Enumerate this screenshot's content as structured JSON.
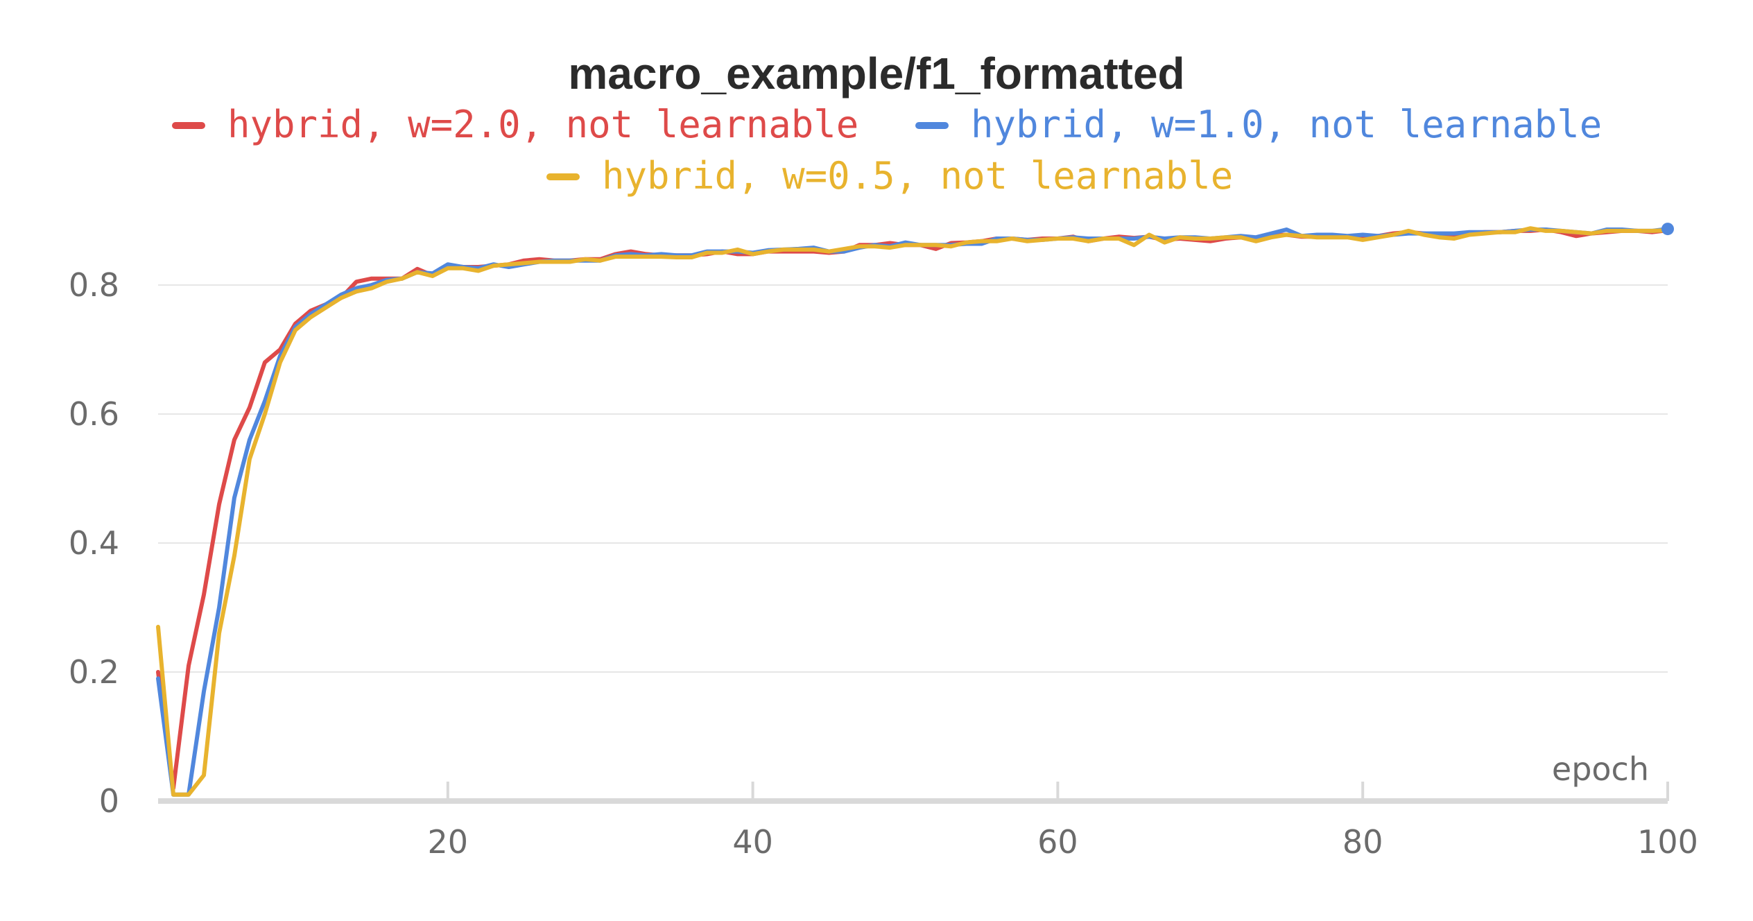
{
  "chart_data": {
    "type": "line",
    "title": "macro_example/f1_formatted",
    "xlabel": "epoch",
    "ylabel": "",
    "xlim": [
      1,
      100
    ],
    "ylim": [
      0,
      0.9
    ],
    "xticks": [
      "20",
      "40",
      "60",
      "80",
      "100"
    ],
    "yticks": [
      "0",
      "0.2",
      "0.4",
      "0.6",
      "0.8"
    ],
    "grid": true,
    "legend_placement": "top",
    "series": [
      {
        "name": "hybrid, w=2.0, not learnable",
        "color": "#de4a49",
        "x": [
          1,
          2,
          3,
          4,
          5,
          6,
          7,
          8,
          9,
          10,
          11,
          12,
          13,
          14,
          15,
          16,
          17,
          18,
          19,
          20,
          21,
          22,
          23,
          24,
          25,
          26,
          27,
          28,
          29,
          30,
          31,
          32,
          33,
          34,
          35,
          36,
          37,
          38,
          39,
          40,
          41,
          42,
          43,
          44,
          45,
          46,
          47,
          48,
          49,
          50,
          51,
          52,
          53,
          54,
          55,
          56,
          57,
          58,
          59,
          60,
          61,
          62,
          63,
          64,
          65,
          66,
          67,
          68,
          69,
          70,
          71,
          72,
          73,
          74,
          75,
          76,
          77,
          78,
          79,
          80,
          81,
          82,
          83,
          84,
          85,
          86,
          87,
          88,
          89,
          90,
          91,
          92,
          93,
          94,
          95,
          96,
          97,
          98,
          99,
          100
        ],
        "values": [
          0.2,
          0.02,
          0.21,
          0.32,
          0.46,
          0.56,
          0.61,
          0.68,
          0.7,
          0.74,
          0.76,
          0.77,
          0.78,
          0.805,
          0.81,
          0.81,
          0.81,
          0.825,
          0.815,
          0.83,
          0.828,
          0.828,
          0.83,
          0.832,
          0.838,
          0.84,
          0.838,
          0.838,
          0.84,
          0.84,
          0.848,
          0.852,
          0.848,
          0.846,
          0.846,
          0.846,
          0.848,
          0.852,
          0.848,
          0.848,
          0.852,
          0.852,
          0.852,
          0.852,
          0.85,
          0.852,
          0.862,
          0.862,
          0.865,
          0.862,
          0.862,
          0.856,
          0.865,
          0.866,
          0.868,
          0.872,
          0.872,
          0.87,
          0.872,
          0.872,
          0.875,
          0.868,
          0.872,
          0.875,
          0.873,
          0.875,
          0.87,
          0.872,
          0.87,
          0.868,
          0.872,
          0.874,
          0.872,
          0.877,
          0.878,
          0.875,
          0.875,
          0.876,
          0.875,
          0.875,
          0.876,
          0.88,
          0.882,
          0.88,
          0.878,
          0.876,
          0.88,
          0.882,
          0.882,
          0.884,
          0.884,
          0.886,
          0.882,
          0.876,
          0.88,
          0.882,
          0.884,
          0.884,
          0.882,
          0.885
        ]
      },
      {
        "name": "hybrid, w=1.0, not learnable",
        "color": "#5087dd",
        "x": [
          1,
          2,
          3,
          4,
          5,
          6,
          7,
          8,
          9,
          10,
          11,
          12,
          13,
          14,
          15,
          16,
          17,
          18,
          19,
          20,
          21,
          22,
          23,
          24,
          25,
          26,
          27,
          28,
          29,
          30,
          31,
          32,
          33,
          34,
          35,
          36,
          37,
          38,
          39,
          40,
          41,
          42,
          43,
          44,
          45,
          46,
          47,
          48,
          49,
          50,
          51,
          52,
          53,
          54,
          55,
          56,
          57,
          58,
          59,
          60,
          61,
          62,
          63,
          64,
          65,
          66,
          67,
          68,
          69,
          70,
          71,
          72,
          73,
          74,
          75,
          76,
          77,
          78,
          79,
          80,
          81,
          82,
          83,
          84,
          85,
          86,
          87,
          88,
          89,
          90,
          91,
          92,
          93,
          94,
          95,
          96,
          97,
          98,
          99,
          100
        ],
        "values": [
          0.19,
          0.01,
          0.01,
          0.17,
          0.3,
          0.47,
          0.56,
          0.62,
          0.69,
          0.735,
          0.755,
          0.77,
          0.785,
          0.795,
          0.8,
          0.808,
          0.81,
          0.82,
          0.818,
          0.832,
          0.828,
          0.826,
          0.832,
          0.828,
          0.832,
          0.836,
          0.838,
          0.838,
          0.838,
          0.838,
          0.846,
          0.848,
          0.846,
          0.848,
          0.846,
          0.846,
          0.852,
          0.852,
          0.852,
          0.85,
          0.854,
          0.855,
          0.856,
          0.858,
          0.852,
          0.852,
          0.858,
          0.862,
          0.86,
          0.866,
          0.862,
          0.862,
          0.862,
          0.864,
          0.864,
          0.872,
          0.872,
          0.87,
          0.87,
          0.872,
          0.874,
          0.872,
          0.872,
          0.872,
          0.872,
          0.875,
          0.872,
          0.874,
          0.874,
          0.872,
          0.874,
          0.876,
          0.874,
          0.88,
          0.886,
          0.876,
          0.878,
          0.878,
          0.876,
          0.878,
          0.876,
          0.878,
          0.88,
          0.88,
          0.88,
          0.88,
          0.882,
          0.882,
          0.882,
          0.884,
          0.886,
          0.886,
          0.884,
          0.882,
          0.88,
          0.886,
          0.886,
          0.884,
          0.884,
          0.887
        ]
      },
      {
        "name": "hybrid, w=0.5, not learnable",
        "color": "#e8b32e",
        "x": [
          1,
          2,
          3,
          4,
          5,
          6,
          7,
          8,
          9,
          10,
          11,
          12,
          13,
          14,
          15,
          16,
          17,
          18,
          19,
          20,
          21,
          22,
          23,
          24,
          25,
          26,
          27,
          28,
          29,
          30,
          31,
          32,
          33,
          34,
          35,
          36,
          37,
          38,
          39,
          40,
          41,
          42,
          43,
          44,
          45,
          46,
          47,
          48,
          49,
          50,
          51,
          52,
          53,
          54,
          55,
          56,
          57,
          58,
          59,
          60,
          61,
          62,
          63,
          64,
          65,
          66,
          67,
          68,
          69,
          70,
          71,
          72,
          73,
          74,
          75,
          76,
          77,
          78,
          79,
          80,
          81,
          82,
          83,
          84,
          85,
          86,
          87,
          88,
          89,
          90,
          91,
          92,
          93,
          94,
          95,
          96,
          97,
          98,
          99,
          100
        ],
        "values": [
          0.27,
          0.01,
          0.01,
          0.04,
          0.26,
          0.38,
          0.53,
          0.6,
          0.68,
          0.73,
          0.75,
          0.765,
          0.78,
          0.79,
          0.795,
          0.805,
          0.81,
          0.82,
          0.814,
          0.826,
          0.826,
          0.822,
          0.83,
          0.832,
          0.834,
          0.836,
          0.836,
          0.836,
          0.84,
          0.838,
          0.844,
          0.844,
          0.844,
          0.844,
          0.843,
          0.843,
          0.85,
          0.85,
          0.855,
          0.848,
          0.852,
          0.855,
          0.855,
          0.855,
          0.852,
          0.856,
          0.86,
          0.86,
          0.858,
          0.862,
          0.862,
          0.862,
          0.86,
          0.866,
          0.868,
          0.868,
          0.872,
          0.868,
          0.87,
          0.872,
          0.872,
          0.868,
          0.872,
          0.872,
          0.862,
          0.878,
          0.866,
          0.874,
          0.872,
          0.872,
          0.874,
          0.874,
          0.868,
          0.874,
          0.878,
          0.876,
          0.874,
          0.874,
          0.874,
          0.87,
          0.874,
          0.878,
          0.884,
          0.878,
          0.874,
          0.872,
          0.878,
          0.88,
          0.882,
          0.882,
          0.888,
          0.884,
          0.884,
          0.882,
          0.88,
          0.884,
          0.884,
          0.884,
          0.884,
          0.885
        ]
      }
    ]
  }
}
